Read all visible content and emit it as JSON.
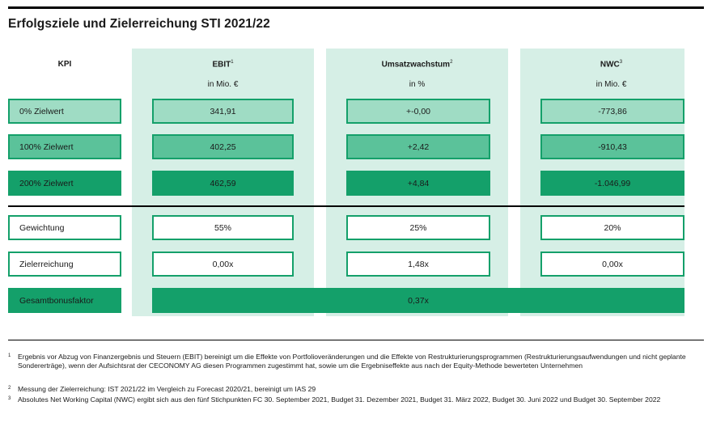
{
  "title": "Erfolgsziele und Zielerreichung STI 2021/22",
  "header": {
    "kpi": "KPI",
    "columns": [
      {
        "name": "EBIT",
        "footnote": "1",
        "unit": "in Mio. €"
      },
      {
        "name": "Umsatzwachstum",
        "footnote": "2",
        "unit": "in %"
      },
      {
        "name": "NWC",
        "footnote": "3",
        "unit": "in Mio. €"
      }
    ]
  },
  "targets": [
    {
      "label": "0% Zielwert",
      "values": [
        "341,91",
        "+-0,00",
        "-773,86"
      ]
    },
    {
      "label": "100% Zielwert",
      "values": [
        "402,25",
        "+2,42",
        "-910,43"
      ]
    },
    {
      "label": "200% Zielwert",
      "values": [
        "462,59",
        "+4,84",
        "-1.046,99"
      ]
    }
  ],
  "weighting": {
    "label": "Gewichtung",
    "values": [
      "55%",
      "25%",
      "20%"
    ]
  },
  "achievement": {
    "label": "Zielerreichung",
    "values": [
      "0,00x",
      "1,48x",
      "0,00x"
    ]
  },
  "total": {
    "label": "Gesamtbonusfaktor",
    "value": "0,37x"
  },
  "colors": {
    "level0": "#9fdcc4",
    "level1": "#5bc29a",
    "level2": "#14a06a",
    "column_bg": "#d6efe6"
  },
  "footnotes": [
    {
      "num": "1",
      "text": "Ergebnis vor Abzug von Finanzergebnis und Steuern (EBIT) bereinigt um die Effekte von Portfolioveränderungen und die Effekte von Restrukturierungsprogrammen (Restrukturierungsaufwendungen und nicht geplante Sondererträge), wenn der Aufsichtsrat der CECONOMY AG diesen Programmen zugestimmt hat, sowie um die Ergebniseffekte aus nach der Equity-Methode bewerteten Unternehmen"
    },
    {
      "num": "2",
      "text": "Messung der Zielerreichung: IST 2021/22 im Vergleich zu Forecast 2020/21, bereinigt um IAS 29"
    },
    {
      "num": "3",
      "text": "Absolutes Net Working Capital (NWC) ergibt sich aus den fünf Stichpunkten FC 30. September 2021, Budget 31. Dezember 2021, Budget 31. März 2022, Budget 30. Juni 2022 und Budget 30. September 2022"
    }
  ]
}
